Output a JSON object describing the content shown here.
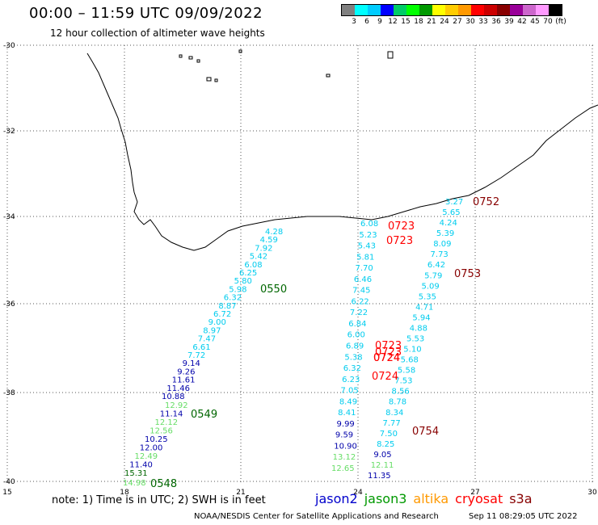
{
  "header": {
    "title": "00:00 – 11:59 UTC 09/09/2022",
    "subtitle": "12 hour collection of altimeter wave heights"
  },
  "legend": {
    "colors": [
      "#808080",
      "#00ffff",
      "#00ccff",
      "#0000ff",
      "#00cc66",
      "#00ff00",
      "#009900",
      "#ffff00",
      "#ffcc00",
      "#ff9900",
      "#ff0000",
      "#cc0000",
      "#880000",
      "#990099",
      "#cc66cc",
      "#ff99ff",
      "#000000"
    ],
    "labels": [
      "3",
      "6",
      "9",
      "12",
      "15",
      "18",
      "21",
      "24",
      "27",
      "30",
      "33",
      "36",
      "39",
      "42",
      "45",
      "70",
      "(ft)"
    ]
  },
  "axes": {
    "lat_labels": [
      "-30",
      "-32",
      "-34",
      "-36",
      "-38",
      "-40"
    ],
    "lon_labels": [
      "15",
      "18",
      "21",
      "24",
      "27",
      "30"
    ]
  },
  "passes": [
    {
      "name": "0550",
      "color": "#006600",
      "values": [
        {
          "t": "4.28",
          "c": "#00ccee"
        },
        {
          "t": "4.59",
          "c": "#00ccee"
        },
        {
          "t": "7.92",
          "c": "#00ccee"
        },
        {
          "t": "5.42",
          "c": "#00ccee"
        },
        {
          "t": "6.08",
          "c": "#00ccee"
        },
        {
          "t": "6.25",
          "c": "#00ccee"
        },
        {
          "t": "5.80",
          "c": "#00ccee"
        },
        {
          "t": "5.98",
          "c": "#00ccee"
        },
        {
          "t": "6.32",
          "c": "#00ccee"
        },
        {
          "t": "8.87",
          "c": "#00ccee"
        },
        {
          "t": "6.72",
          "c": "#00ccee"
        },
        {
          "t": "9.00",
          "c": "#00ccee"
        },
        {
          "t": "8.97",
          "c": "#00ccee"
        },
        {
          "t": "7.47",
          "c": "#00ccee"
        },
        {
          "t": "6.61",
          "c": "#00ccee"
        },
        {
          "t": "7.72",
          "c": "#00ccee"
        },
        {
          "t": "9.14",
          "c": "#0000aa"
        },
        {
          "t": "9.26",
          "c": "#0000aa"
        },
        {
          "t": "11.61",
          "c": "#0000aa"
        },
        {
          "t": "11.46",
          "c": "#0000aa"
        },
        {
          "t": "10.88",
          "c": "#0000aa"
        }
      ]
    },
    {
      "name": "0549",
      "color": "#006600",
      "values": [
        {
          "t": "12.92",
          "c": "#66dd66"
        },
        {
          "t": "11.14",
          "c": "#0000aa"
        },
        {
          "t": "12.12",
          "c": "#66dd66"
        },
        {
          "t": "12.56",
          "c": "#66dd66"
        },
        {
          "t": "10.25",
          "c": "#0000aa"
        },
        {
          "t": "12.00",
          "c": "#0000aa"
        },
        {
          "t": "12.49",
          "c": "#66dd66"
        },
        {
          "t": "11.40",
          "c": "#0000aa"
        },
        {
          "t": "15.31",
          "c": "#006600"
        }
      ]
    },
    {
      "name": "0548",
      "color": "#006600",
      "values": [
        {
          "t": "14.98",
          "c": "#66dd66"
        }
      ]
    },
    {
      "name": "0723",
      "color": "#ff0000",
      "values": [
        {
          "t": "6.08",
          "c": "#00ccee"
        },
        {
          "t": "5.23",
          "c": "#00ccee"
        },
        {
          "t": "5.43",
          "c": "#00ccee"
        },
        {
          "t": "5.81",
          "c": "#00ccee"
        },
        {
          "t": "7.70",
          "c": "#00ccee"
        },
        {
          "t": "6.46",
          "c": "#00ccee"
        },
        {
          "t": "7.45",
          "c": "#00ccee"
        },
        {
          "t": "6.22",
          "c": "#00ccee"
        },
        {
          "t": "7.22",
          "c": "#00ccee"
        },
        {
          "t": "6.84",
          "c": "#00ccee"
        },
        {
          "t": "6.00",
          "c": "#00ccee"
        },
        {
          "t": "6.89",
          "c": "#00ccee"
        },
        {
          "t": "5.38",
          "c": "#00ccee"
        },
        {
          "t": "6.32",
          "c": "#00ccee"
        },
        {
          "t": "6.23",
          "c": "#00ccee"
        },
        {
          "t": "7.05",
          "c": "#00ccee"
        },
        {
          "t": "8.49",
          "c": "#00ccee"
        },
        {
          "t": "8.41",
          "c": "#00ccee"
        },
        {
          "t": "9.99",
          "c": "#0000aa"
        },
        {
          "t": "9.59",
          "c": "#0000aa"
        },
        {
          "t": "10.90",
          "c": "#0000aa"
        },
        {
          "t": "13.12",
          "c": "#66dd66"
        },
        {
          "t": "12.65",
          "c": "#66dd66"
        }
      ]
    },
    {
      "name": "0753",
      "color": "#880000",
      "values": [
        {
          "t": "3.27",
          "c": "#00ccee"
        },
        {
          "t": "5.65",
          "c": "#00ccee"
        },
        {
          "t": "4.24",
          "c": "#00ccee"
        },
        {
          "t": "5.39",
          "c": "#00ccee"
        },
        {
          "t": "8.09",
          "c": "#00ccee"
        },
        {
          "t": "7.73",
          "c": "#00ccee"
        },
        {
          "t": "6.42",
          "c": "#00ccee"
        },
        {
          "t": "5.79",
          "c": "#00ccee"
        },
        {
          "t": "5.09",
          "c": "#00ccee"
        },
        {
          "t": "5.35",
          "c": "#00ccee"
        },
        {
          "t": "4.71",
          "c": "#00ccee"
        },
        {
          "t": "5.94",
          "c": "#00ccee"
        },
        {
          "t": "4.88",
          "c": "#00ccee"
        },
        {
          "t": "5.53",
          "c": "#00ccee"
        },
        {
          "t": "5.10",
          "c": "#00ccee"
        },
        {
          "t": "5.68",
          "c": "#00ccee"
        },
        {
          "t": "5.58",
          "c": "#00ccee"
        },
        {
          "t": "7.53",
          "c": "#00ccee"
        },
        {
          "t": "8.56",
          "c": "#00ccee"
        },
        {
          "t": "8.78",
          "c": "#00ccee"
        },
        {
          "t": "8.34",
          "c": "#00ccee"
        },
        {
          "t": "7.77",
          "c": "#00ccee"
        },
        {
          "t": "7.50",
          "c": "#00ccee"
        },
        {
          "t": "8.25",
          "c": "#00ccee"
        },
        {
          "t": "9.05",
          "c": "#0000aa"
        },
        {
          "t": "12.11",
          "c": "#66dd66"
        },
        {
          "t": "11.35",
          "c": "#0000aa"
        }
      ]
    }
  ],
  "time_labels": [
    {
      "t": "0752",
      "c": "#880000"
    },
    {
      "t": "0723",
      "c": "#ff0000"
    },
    {
      "t": "0723",
      "c": "#ff0000"
    },
    {
      "t": "0753",
      "c": "#880000"
    },
    {
      "t": "0550",
      "c": "#006600"
    },
    {
      "t": "0723",
      "c": "#ff0000"
    },
    {
      "t": "0723",
      "c": "#ff0000"
    },
    {
      "t": "0724",
      "c": "#ff0000"
    },
    {
      "t": "0724",
      "c": "#ff0000"
    },
    {
      "t": "0724",
      "c": "#ff0000"
    },
    {
      "t": "0549",
      "c": "#006600"
    },
    {
      "t": "0754",
      "c": "#880000"
    },
    {
      "t": "0548",
      "c": "#006600"
    }
  ],
  "note": "note: 1) Time is in UTC; 2) SWH is in feet",
  "satellites": [
    {
      "name": "jason2",
      "color": "#0000cc"
    },
    {
      "name": "jason3",
      "color": "#009900"
    },
    {
      "name": "altika",
      "color": "#ff9900"
    },
    {
      "name": "cryosat",
      "color": "#ff0000"
    },
    {
      "name": "s3a",
      "color": "#880000"
    }
  ],
  "footer": {
    "credit": "NOAA/NESDIS Center for Satellite Applications and Research",
    "timestamp": "Sep 11 08:29:05 UTC 2022"
  }
}
